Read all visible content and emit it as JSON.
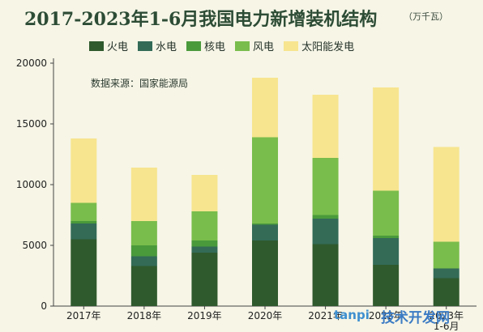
{
  "title": "2017-2023年1-6月我国电力新增装机结构",
  "unit": "（万千瓦）",
  "source": "数据来源：国家能源局",
  "watermark": "tanpi",
  "watermark2": "技术开发网",
  "colors": {
    "火电": "#2f5a2d",
    "水电": "#336b57",
    "核电": "#4a9a3b",
    "风电": "#79bd4c",
    "太阳能发电": "#f7e58f"
  },
  "chart_data": {
    "type": "bar",
    "stacked": true,
    "title": "2017-2023年1-6月我国电力新增装机结构",
    "categories": [
      "2017年",
      "2018年",
      "2019年",
      "2020年",
      "2021年",
      "2022年",
      "2023年1-6月"
    ],
    "ylim": [
      0,
      20000
    ],
    "yticks": [
      0,
      5000,
      10000,
      15000,
      20000
    ],
    "legend_position": "top",
    "grid": false,
    "series": [
      {
        "name": "火电",
        "values": [
          5500,
          3300,
          4400,
          5400,
          5100,
          3400,
          2300
        ]
      },
      {
        "name": "水电",
        "values": [
          1300,
          800,
          500,
          1300,
          2100,
          2200,
          800
        ]
      },
      {
        "name": "核电",
        "values": [
          200,
          900,
          500,
          100,
          300,
          200,
          0
        ]
      },
      {
        "name": "风电",
        "values": [
          1500,
          2000,
          2400,
          7100,
          4700,
          3700,
          2200
        ]
      },
      {
        "name": "太阳能发电",
        "values": [
          5300,
          4400,
          3000,
          4900,
          5200,
          8500,
          7800
        ]
      }
    ]
  }
}
